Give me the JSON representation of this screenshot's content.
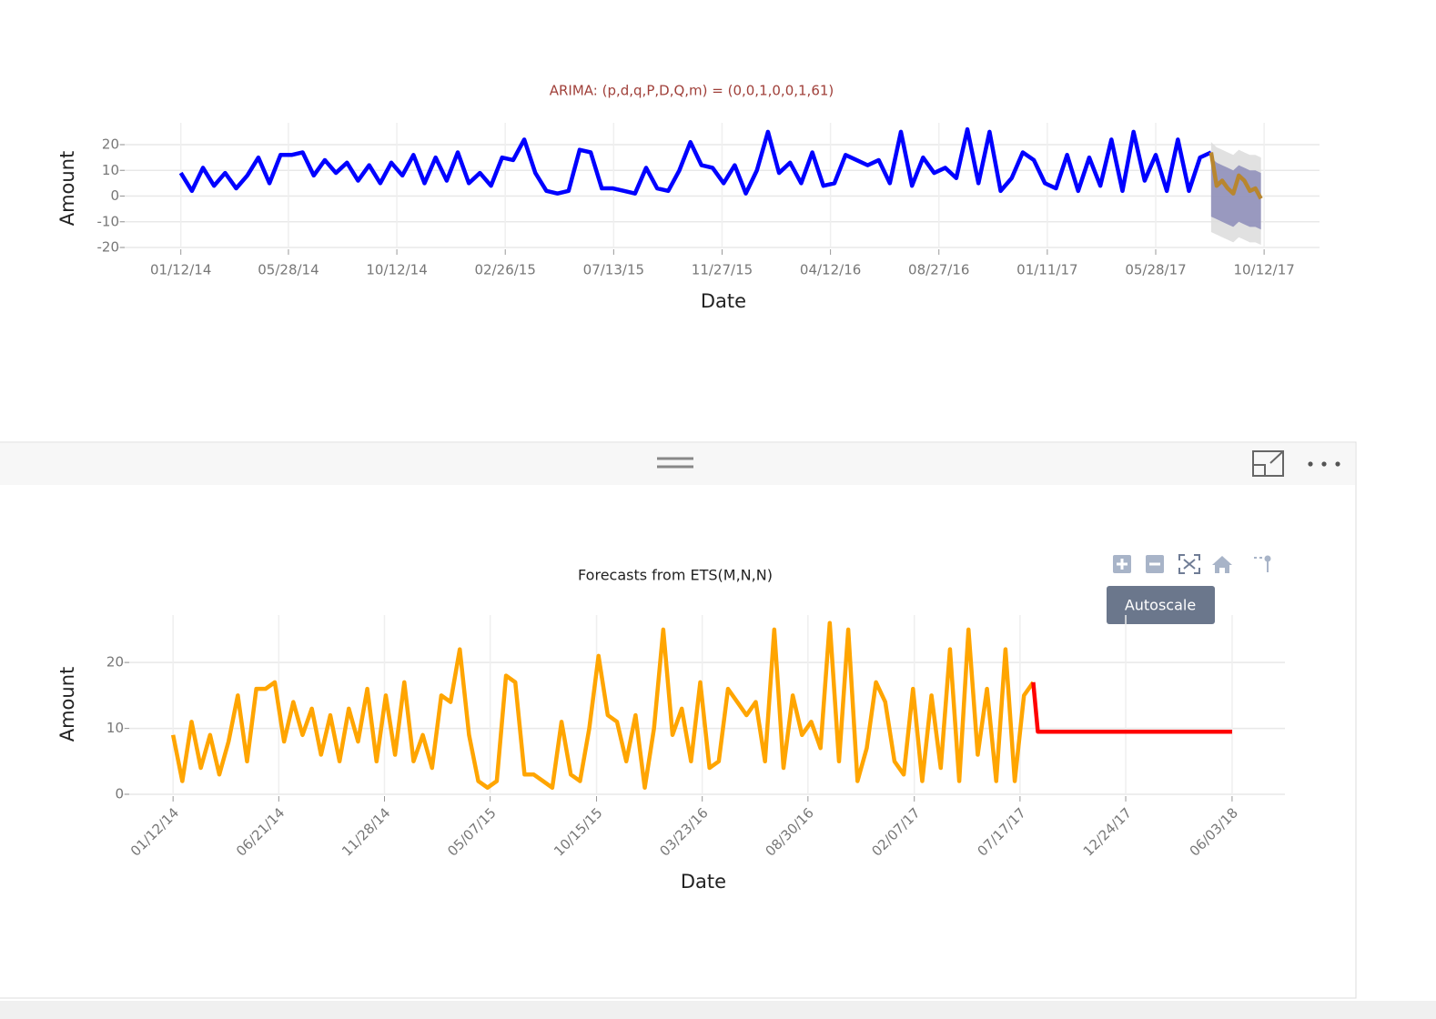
{
  "chart_data": [
    {
      "type": "line",
      "title": "ARIMA: (p,d,q,P,D,Q,m) = (0,0,1,0,0,1,61)",
      "xlabel": "Date",
      "ylabel": "Amount",
      "x": [
        "2014-01-12",
        "2014-01-26",
        "2014-02-09",
        "2014-02-23",
        "2014-03-09",
        "2014-03-23",
        "2014-04-06",
        "2014-04-20",
        "2014-05-04",
        "2014-05-18",
        "2014-06-01",
        "2014-06-15",
        "2014-06-29",
        "2014-07-13",
        "2014-07-27",
        "2014-08-10",
        "2014-08-24",
        "2014-09-07",
        "2014-09-21",
        "2014-10-05",
        "2014-10-19",
        "2014-11-02",
        "2014-11-16",
        "2014-11-30",
        "2014-12-14",
        "2014-12-28",
        "2015-01-11",
        "2015-01-25",
        "2015-02-08",
        "2015-02-22",
        "2015-03-08",
        "2015-03-22",
        "2015-04-05",
        "2015-04-19",
        "2015-05-03",
        "2015-05-17",
        "2015-05-31",
        "2015-06-14",
        "2015-06-28",
        "2015-07-12",
        "2015-07-26",
        "2015-08-09",
        "2015-08-23",
        "2015-09-06",
        "2015-09-20",
        "2015-10-04",
        "2015-10-18",
        "2015-11-01",
        "2015-11-15",
        "2015-11-29",
        "2015-12-13",
        "2015-12-27",
        "2016-01-10",
        "2016-01-24",
        "2016-02-07",
        "2016-02-21",
        "2016-03-06",
        "2016-03-20",
        "2016-04-03",
        "2016-04-17",
        "2016-05-01",
        "2016-05-15",
        "2016-05-29",
        "2016-06-12",
        "2016-06-26",
        "2016-07-10",
        "2016-07-24",
        "2016-08-07",
        "2016-08-21",
        "2016-09-04",
        "2016-09-18",
        "2016-10-02",
        "2016-10-16",
        "2016-10-30",
        "2016-11-13",
        "2016-11-27",
        "2016-12-11",
        "2016-12-25",
        "2017-01-08",
        "2017-01-22",
        "2017-02-05",
        "2017-02-19",
        "2017-03-05",
        "2017-03-19",
        "2017-04-02",
        "2017-04-16",
        "2017-04-30",
        "2017-05-14",
        "2017-05-28",
        "2017-06-11",
        "2017-06-25",
        "2017-07-09",
        "2017-07-23",
        "2017-08-06"
      ],
      "series": [
        {
          "color": "#0000ff",
          "values": [
            9,
            2,
            11,
            4,
            9,
            3,
            8,
            15,
            5,
            16,
            16,
            17,
            8,
            14,
            9,
            13,
            6,
            12,
            5,
            13,
            8,
            16,
            5,
            15,
            6,
            17,
            5,
            9,
            4,
            15,
            14,
            22,
            9,
            2,
            1,
            2,
            18,
            17,
            3,
            3,
            2,
            1,
            11,
            3,
            2,
            10,
            21,
            12,
            11,
            5,
            12,
            1,
            10,
            25,
            9,
            13,
            5,
            17,
            4,
            5,
            16,
            14,
            12,
            14,
            5,
            25,
            4,
            15,
            9,
            11,
            7,
            26,
            5,
            25,
            2,
            7,
            17,
            14,
            5,
            3,
            16,
            2,
            15,
            4,
            22,
            2,
            25,
            6,
            16,
            2,
            22,
            2,
            15,
            17
          ]
        },
        {
          "color": "#b8862f",
          "x": [
            "2017-08-06",
            "2017-08-13",
            "2017-08-20",
            "2017-08-27",
            "2017-09-03",
            "2017-09-10",
            "2017-09-17",
            "2017-09-24",
            "2017-10-01",
            "2017-10-08"
          ],
          "values": [
            17,
            4,
            6,
            3,
            1,
            8,
            6,
            2,
            3,
            -1
          ]
        }
      ],
      "bands": [
        {
          "color": "#dcdcdc",
          "x": [
            "2017-08-06",
            "2017-08-13",
            "2017-08-20",
            "2017-08-27",
            "2017-09-03",
            "2017-09-10",
            "2017-09-17",
            "2017-09-24",
            "2017-10-01",
            "2017-10-08"
          ],
          "lower": [
            -14,
            -15,
            -16,
            -17,
            -18,
            -16,
            -17,
            -18,
            -18,
            -19
          ],
          "upper": [
            21,
            19,
            18,
            17,
            16,
            18,
            17,
            16,
            16,
            15
          ]
        },
        {
          "color": "#8c8cb8",
          "x": [
            "2017-08-06",
            "2017-08-13",
            "2017-08-20",
            "2017-08-27",
            "2017-09-03",
            "2017-09-10",
            "2017-09-17",
            "2017-09-24",
            "2017-10-01",
            "2017-10-08"
          ],
          "lower": [
            -8,
            -9,
            -10,
            -11,
            -12,
            -10,
            -11,
            -12,
            -12,
            -13
          ],
          "upper": [
            15,
            13,
            12,
            11,
            10,
            12,
            11,
            10,
            10,
            9
          ]
        }
      ],
      "xlim": [
        "2013-10-25",
        "2017-12-21"
      ],
      "ylim": [
        -20,
        28.5
      ],
      "xticks": [
        {
          "value": "2014-01-12",
          "label": "01/12/14"
        },
        {
          "value": "2014-05-28",
          "label": "05/28/14"
        },
        {
          "value": "2014-10-12",
          "label": "10/12/14"
        },
        {
          "value": "2015-02-26",
          "label": "02/26/15"
        },
        {
          "value": "2015-07-13",
          "label": "07/13/15"
        },
        {
          "value": "2015-11-27",
          "label": "11/27/15"
        },
        {
          "value": "2016-04-12",
          "label": "04/12/16"
        },
        {
          "value": "2016-08-27",
          "label": "08/27/16"
        },
        {
          "value": "2017-01-11",
          "label": "01/11/17"
        },
        {
          "value": "2017-05-28",
          "label": "05/28/17"
        },
        {
          "value": "2017-10-12",
          "label": "10/12/17"
        }
      ],
      "yticks": [
        -20,
        -10,
        0,
        10,
        20
      ],
      "grid": true
    },
    {
      "type": "line",
      "title": "Forecasts from ETS(M,N,N)",
      "xlabel": "Date",
      "ylabel": "Amount",
      "x": [
        "2014-01-12",
        "2014-01-26",
        "2014-02-09",
        "2014-02-23",
        "2014-03-09",
        "2014-03-23",
        "2014-04-06",
        "2014-04-20",
        "2014-05-04",
        "2014-05-18",
        "2014-06-01",
        "2014-06-15",
        "2014-06-29",
        "2014-07-13",
        "2014-07-27",
        "2014-08-10",
        "2014-08-24",
        "2014-09-07",
        "2014-09-21",
        "2014-10-05",
        "2014-10-19",
        "2014-11-02",
        "2014-11-16",
        "2014-11-30",
        "2014-12-14",
        "2014-12-28",
        "2015-01-11",
        "2015-01-25",
        "2015-02-08",
        "2015-02-22",
        "2015-03-08",
        "2015-03-22",
        "2015-04-05",
        "2015-04-19",
        "2015-05-03",
        "2015-05-17",
        "2015-05-31",
        "2015-06-14",
        "2015-06-28",
        "2015-07-12",
        "2015-07-26",
        "2015-08-09",
        "2015-08-23",
        "2015-09-06",
        "2015-09-20",
        "2015-10-04",
        "2015-10-18",
        "2015-11-01",
        "2015-11-15",
        "2015-11-29",
        "2015-12-13",
        "2015-12-27",
        "2016-01-10",
        "2016-01-24",
        "2016-02-07",
        "2016-02-21",
        "2016-03-06",
        "2016-03-20",
        "2016-04-03",
        "2016-04-17",
        "2016-05-01",
        "2016-05-15",
        "2016-05-29",
        "2016-06-12",
        "2016-06-26",
        "2016-07-10",
        "2016-07-24",
        "2016-08-07",
        "2016-08-21",
        "2016-09-04",
        "2016-09-18",
        "2016-10-02",
        "2016-10-16",
        "2016-10-30",
        "2016-11-13",
        "2016-11-27",
        "2016-12-11",
        "2016-12-25",
        "2017-01-08",
        "2017-01-22",
        "2017-02-05",
        "2017-02-19",
        "2017-03-05",
        "2017-03-19",
        "2017-04-02",
        "2017-04-16",
        "2017-04-30",
        "2017-05-14",
        "2017-05-28",
        "2017-06-11",
        "2017-06-25",
        "2017-07-09",
        "2017-07-23",
        "2017-08-06"
      ],
      "series": [
        {
          "color": "#ffa500",
          "values": [
            9,
            2,
            11,
            4,
            9,
            3,
            8,
            15,
            5,
            16,
            16,
            17,
            8,
            14,
            9,
            13,
            6,
            12,
            5,
            13,
            8,
            16,
            5,
            15,
            6,
            17,
            5,
            9,
            4,
            15,
            14,
            22,
            9,
            2,
            1,
            2,
            18,
            17,
            3,
            3,
            2,
            1,
            11,
            3,
            2,
            10,
            21,
            12,
            11,
            5,
            12,
            1,
            10,
            25,
            9,
            13,
            5,
            17,
            4,
            5,
            16,
            14,
            12,
            14,
            5,
            25,
            4,
            15,
            9,
            11,
            7,
            26,
            5,
            25,
            2,
            7,
            17,
            14,
            5,
            3,
            16,
            2,
            15,
            4,
            22,
            2,
            25,
            6,
            16,
            2,
            22,
            2,
            15,
            17
          ]
        },
        {
          "color": "#ff0000",
          "x": [
            "2017-08-06",
            "2017-08-13",
            "2018-06-03"
          ],
          "values": [
            17,
            9.5,
            9.5
          ]
        }
      ],
      "xlim": [
        "2013-10-28",
        "2018-08-22"
      ],
      "ylim": [
        0,
        27.2
      ],
      "xticks": [
        {
          "value": "2014-01-12",
          "label": "01/12/14"
        },
        {
          "value": "2014-06-21",
          "label": "06/21/14"
        },
        {
          "value": "2014-11-28",
          "label": "11/28/14"
        },
        {
          "value": "2015-05-07",
          "label": "05/07/15"
        },
        {
          "value": "2015-10-15",
          "label": "10/15/15"
        },
        {
          "value": "2016-03-23",
          "label": "03/23/16"
        },
        {
          "value": "2016-08-30",
          "label": "08/30/16"
        },
        {
          "value": "2017-02-07",
          "label": "02/07/17"
        },
        {
          "value": "2017-07-17",
          "label": "07/17/17"
        },
        {
          "value": "2017-12-24",
          "label": "12/24/17"
        },
        {
          "value": "2018-06-03",
          "label": "06/03/18"
        }
      ],
      "yticks": [
        0,
        10,
        20
      ],
      "grid": true
    }
  ],
  "toolbar": {
    "tooltip": "Autoscale"
  }
}
